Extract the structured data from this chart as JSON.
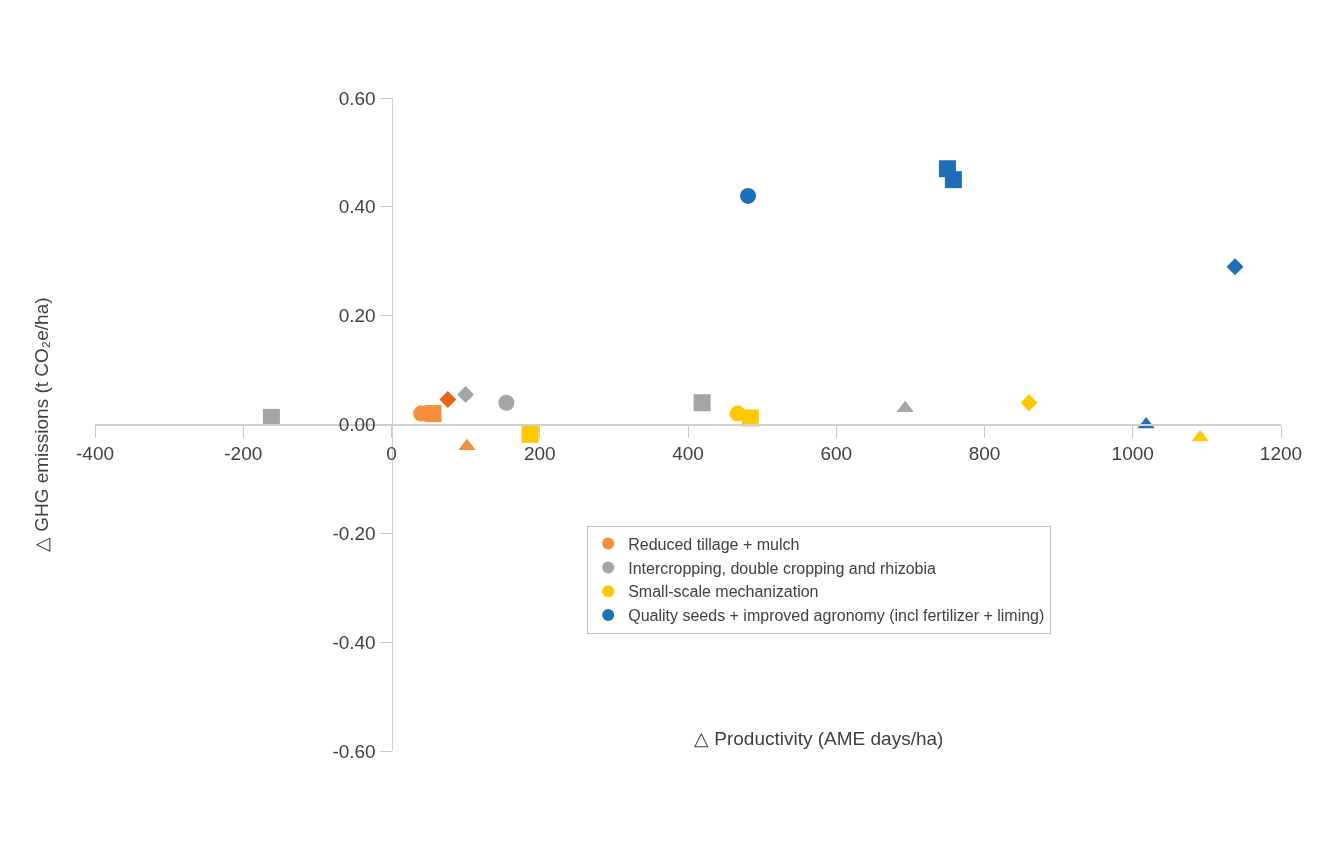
{
  "chart_data": {
    "type": "scatter",
    "xlabel": "△ Productivity (AME days/ha)",
    "ylabel": "△ GHG emissions (t CO₂e/ha)",
    "xlim": [
      -400,
      1200
    ],
    "xticks": [
      -400,
      -200,
      0,
      200,
      400,
      600,
      800,
      1000,
      1200
    ],
    "ylim": [
      -0.6,
      0.6
    ],
    "yticks": [
      {
        "value": -0.6,
        "label": "-0.60"
      },
      {
        "value": -0.4,
        "label": "-0.40"
      },
      {
        "value": -0.2,
        "label": "-0.20"
      },
      {
        "value": 0,
        "label": "0.00"
      },
      {
        "value": 0.2,
        "label": "0.20"
      },
      {
        "value": 0.4,
        "label": "0.40"
      },
      {
        "value": 0.6,
        "label": "0.60"
      }
    ],
    "grid": false,
    "legend": "bottom",
    "series": [
      {
        "name": "Reduced tillage + mulch",
        "color": "#f28e3c",
        "marker": "circle",
        "x": [
          40
        ],
        "values": [
          0.02
        ]
      },
      {
        "color": "#f28e3c",
        "marker": "square",
        "x": [
          56
        ],
        "values": [
          0.02
        ]
      },
      {
        "color": "#e8650f",
        "marker": "diamond",
        "x": [
          76
        ],
        "values": [
          0.046
        ]
      },
      {
        "color": "#f28e3c",
        "marker": "triangle",
        "x": [
          102
        ],
        "values": [
          -0.04
        ]
      },
      {
        "name": "Intercropping, double cropping and rhizobia",
        "color": "#a5a5a5",
        "marker": "circle",
        "x": [
          155
        ],
        "values": [
          0.04
        ]
      },
      {
        "color": "#a5a5a5",
        "marker": "square",
        "x": [
          -162,
          419
        ],
        "values": [
          0.013,
          0.04
        ]
      },
      {
        "color": "#a5a5a5",
        "marker": "diamond",
        "x": [
          100
        ],
        "values": [
          0.055
        ]
      },
      {
        "color": "#a5a5a5",
        "marker": "triangle",
        "x": [
          693
        ],
        "values": [
          0.03
        ]
      },
      {
        "name": "Small-scale mechanization",
        "color": "#ffc800",
        "marker": "circle",
        "x": [
          467
        ],
        "values": [
          0.02
        ]
      },
      {
        "color": "#ffc800",
        "marker": "square",
        "x": [
          187,
          484
        ],
        "values": [
          -0.018,
          0.012
        ]
      },
      {
        "color": "#ffc800",
        "marker": "diamond",
        "x": [
          860
        ],
        "values": [
          0.04
        ]
      },
      {
        "color": "#ffc800",
        "marker": "triangle",
        "x": [
          1091
        ],
        "values": [
          -0.024
        ]
      },
      {
        "name": "Quality seeds + improved agronomy (incl fertilizer + liming)",
        "color": "#1f6fb8",
        "marker": "circle",
        "x": [
          481
        ],
        "values": [
          0.42
        ]
      },
      {
        "color": "#1f6fb8",
        "marker": "square",
        "x": [
          750,
          758
        ],
        "values": [
          0.47,
          0.45
        ]
      },
      {
        "color": "#1f6fb8",
        "marker": "diamond",
        "x": [
          1138
        ],
        "values": [
          0.29
        ]
      },
      {
        "color": "#1f6fb8",
        "marker": "triangle",
        "x": [
          1018
        ],
        "values": [
          0.0
        ]
      }
    ]
  }
}
